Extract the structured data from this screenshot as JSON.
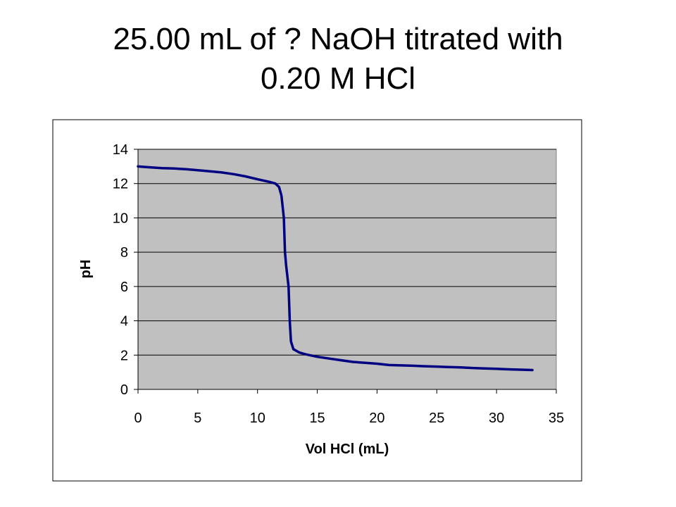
{
  "slide": {
    "title_line1": "25.00 mL of ? NaOH titrated with",
    "title_line2": "0.20 M HCl"
  },
  "chart_data": {
    "type": "line",
    "title": "",
    "xlabel": "Vol HCl (mL)",
    "ylabel": "pH",
    "xlim": [
      0,
      35
    ],
    "ylim": [
      0,
      14
    ],
    "x_ticks": [
      0,
      5,
      10,
      15,
      20,
      25,
      30,
      35
    ],
    "y_ticks": [
      0,
      2,
      4,
      6,
      8,
      10,
      12,
      14
    ],
    "grid": true,
    "legend": "none",
    "colors": {
      "line": "#000080",
      "plot_bg": "#c0c0c0",
      "grid": "#000000"
    },
    "series": [
      {
        "x": [
          0,
          1,
          2,
          3,
          4,
          5,
          6,
          7,
          8,
          9,
          10,
          11,
          11.5,
          11.8,
          12.0,
          12.2,
          12.3,
          12.4,
          12.6,
          12.7,
          12.8,
          13.0,
          13.5,
          14,
          15,
          16,
          17,
          18,
          19,
          20,
          21,
          22,
          23,
          24,
          25,
          26,
          27,
          28,
          29,
          30,
          31,
          32,
          33
        ],
        "y": [
          13.0,
          12.95,
          12.9,
          12.88,
          12.84,
          12.78,
          12.72,
          12.65,
          12.55,
          12.42,
          12.25,
          12.1,
          12.0,
          11.8,
          11.3,
          10.0,
          8.0,
          7.2,
          6.0,
          4.0,
          2.8,
          2.35,
          2.15,
          2.05,
          1.9,
          1.8,
          1.7,
          1.6,
          1.55,
          1.5,
          1.42,
          1.4,
          1.38,
          1.35,
          1.33,
          1.3,
          1.28,
          1.25,
          1.22,
          1.2,
          1.17,
          1.15,
          1.13
        ]
      }
    ]
  }
}
